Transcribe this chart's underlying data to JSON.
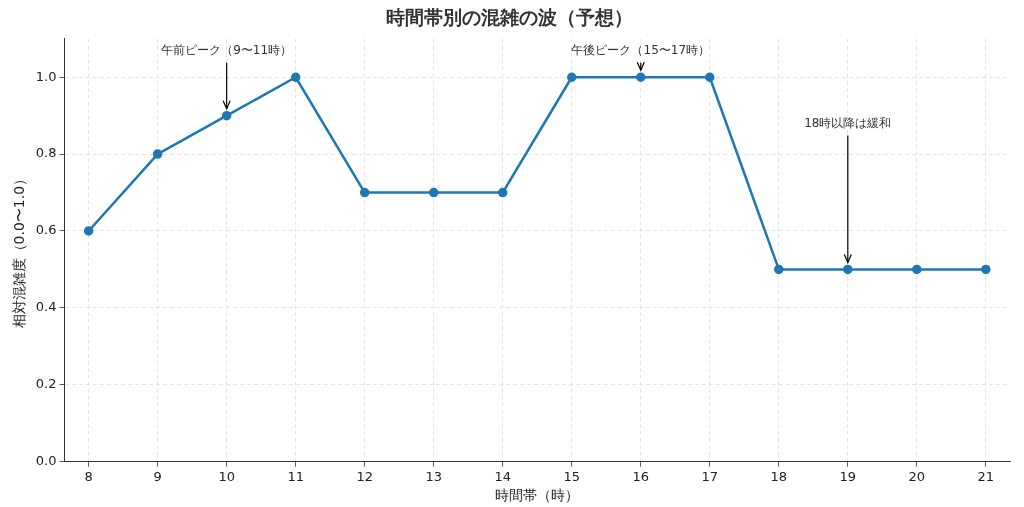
{
  "chart_data": {
    "type": "line",
    "title": "時間帯別の混雑の波（予想）",
    "xlabel": "時間帯（時）",
    "ylabel": "相対混雑度（0.0〜1.0）",
    "x": [
      8,
      9,
      10,
      11,
      12,
      13,
      14,
      15,
      16,
      17,
      18,
      19,
      20,
      21
    ],
    "series": [
      {
        "color": "#1f77b4",
        "values": [
          0.6,
          0.8,
          0.9,
          1.0,
          0.7,
          0.7,
          0.7,
          1.0,
          1.0,
          1.0,
          0.5,
          0.5,
          0.5,
          0.5
        ]
      }
    ],
    "xlim": [
      7.65,
      21.35
    ],
    "ylim": [
      0,
      1.1
    ],
    "xticks": [
      8,
      9,
      10,
      11,
      12,
      13,
      14,
      15,
      16,
      17,
      18,
      19,
      20,
      21
    ],
    "yticks": [
      {
        "value": 0,
        "label": "0.0"
      },
      {
        "value": 0.2,
        "label": "0.2"
      },
      {
        "value": 0.4,
        "label": "0.4"
      },
      {
        "value": 0.6,
        "label": "0.6"
      },
      {
        "value": 0.8,
        "label": "0.8"
      },
      {
        "value": 1.0,
        "label": "1.0"
      }
    ],
    "annotations": [
      {
        "text": "午前ピーク（9〜11時）",
        "x": 10,
        "y": 0.9
      },
      {
        "text": "午後ピーク（15〜17時）",
        "x": 16,
        "y": 1.0
      },
      {
        "text": "18時以降は緩和",
        "x": 19,
        "y": 0.5
      }
    ],
    "grid": true,
    "marker": "circle",
    "line_style": "solid",
    "legend": false
  }
}
